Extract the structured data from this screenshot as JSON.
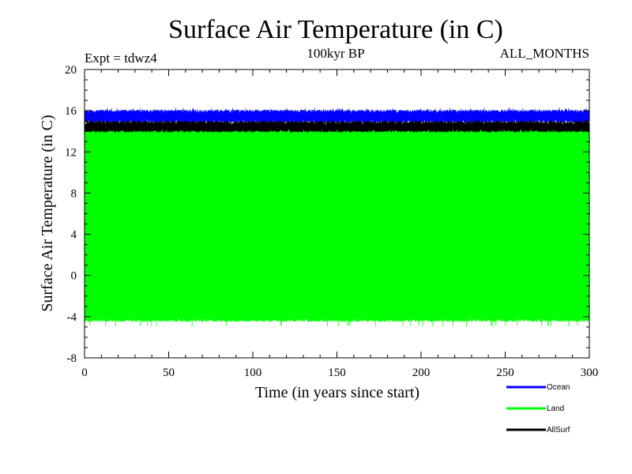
{
  "chart_data": {
    "type": "line",
    "title": "Surface Air Temperature (in C)",
    "subtitle_left": "Expt = tdwz4",
    "subtitle_center": "100kyr BP",
    "subtitle_right": "ALL_MONTHS",
    "xlabel": "Time (in years since start)",
    "ylabel": "Surface Air Temperature (in C)",
    "xlim": [
      0,
      300
    ],
    "ylim": [
      -8,
      20
    ],
    "x_ticks": [
      0,
      50,
      100,
      150,
      200,
      250,
      300
    ],
    "y_ticks": [
      -8,
      -4,
      0,
      4,
      8,
      12,
      16,
      20
    ],
    "grid": false,
    "legend_position": "bottom-right",
    "series": [
      {
        "name": "Ocean",
        "color": "#0000ff",
        "band_min": 14.8,
        "band_max": 16.1,
        "upper_peak": 16.3
      },
      {
        "name": "Land",
        "color": "#00ff00",
        "band_min": -4.5,
        "band_max": 14.5,
        "lower_peak": -5.0
      },
      {
        "name": "AllSurf",
        "color": "#000000",
        "band_min": 13.9,
        "band_max": 15.0,
        "upper_peak": 15.2
      }
    ]
  }
}
